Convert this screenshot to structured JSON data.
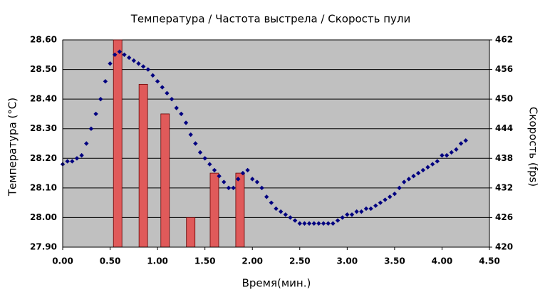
{
  "chart_data": {
    "type": "combo",
    "title": "Температура / Частота выстрела / Скорость пули",
    "xlabel": "Время(мин.)",
    "ylabel": "Температура (°C)",
    "y2label": "Скорость (fps)",
    "xlim": [
      0,
      4.5
    ],
    "xticks": [
      {
        "value": 0,
        "label": "0.00"
      },
      {
        "value": 0.5,
        "label": "0.50"
      },
      {
        "value": 1,
        "label": "1.00"
      },
      {
        "value": 1.5,
        "label": "1.50"
      },
      {
        "value": 2,
        "label": "2.00"
      },
      {
        "value": 2.5,
        "label": "2.50"
      },
      {
        "value": 3,
        "label": "3.00"
      },
      {
        "value": 3.5,
        "label": "3.50"
      },
      {
        "value": 4,
        "label": "4.00"
      },
      {
        "value": 4.5,
        "label": "4.50"
      }
    ],
    "ylim": [
      27.9,
      28.6
    ],
    "yticks": [
      {
        "value": 27.9,
        "label": "27.90"
      },
      {
        "value": 28,
        "label": "28.00"
      },
      {
        "value": 28.1,
        "label": "28.10"
      },
      {
        "value": 28.2,
        "label": "28.20"
      },
      {
        "value": 28.3,
        "label": "28.30"
      },
      {
        "value": 28.4,
        "label": "28.40"
      },
      {
        "value": 28.5,
        "label": "28.50"
      },
      {
        "value": 28.6,
        "label": "28.60"
      }
    ],
    "y2lim": [
      420,
      462
    ],
    "y2ticks": [
      420,
      426,
      432,
      438,
      444,
      450,
      456,
      462
    ],
    "grid": true,
    "series": [
      {
        "type": "bar",
        "axis": "y2",
        "color": "#e05a5a",
        "x": [
          0.58,
          0.85,
          1.08,
          1.35,
          1.6,
          1.87
        ],
        "values": [
          462,
          453,
          447,
          426,
          435,
          435
        ]
      },
      {
        "type": "scatter",
        "color": "#000080",
        "x": [
          0,
          0.05,
          0.1,
          0.15,
          0.2,
          0.25,
          0.3,
          0.35,
          0.4,
          0.45,
          0.5,
          0.55,
          0.6,
          0.65,
          0.7,
          0.75,
          0.8,
          0.85,
          0.9,
          0.95,
          1,
          1.05,
          1.1,
          1.15,
          1.2,
          1.25,
          1.3,
          1.35,
          1.4,
          1.45,
          1.5,
          1.55,
          1.6,
          1.65,
          1.7,
          1.75,
          1.8,
          1.85,
          1.9,
          1.95,
          2,
          2.05,
          2.1,
          2.15,
          2.2,
          2.25,
          2.3,
          2.35,
          2.4,
          2.45,
          2.5,
          2.55,
          2.6,
          2.65,
          2.7,
          2.75,
          2.8,
          2.85,
          2.9,
          2.95,
          3,
          3.05,
          3.1,
          3.15,
          3.2,
          3.25,
          3.3,
          3.35,
          3.4,
          3.45,
          3.5,
          3.55,
          3.6,
          3.65,
          3.7,
          3.75,
          3.8,
          3.85,
          3.9,
          3.95,
          4,
          4.05,
          4.1,
          4.15,
          4.2,
          4.25
        ],
        "values": [
          28.18,
          28.19,
          28.19,
          28.2,
          28.21,
          28.25,
          28.3,
          28.35,
          28.4,
          28.46,
          28.52,
          28.55,
          28.56,
          28.55,
          28.54,
          28.53,
          28.52,
          28.51,
          28.5,
          28.48,
          28.46,
          28.44,
          28.42,
          28.4,
          28.37,
          28.35,
          28.32,
          28.28,
          28.25,
          28.22,
          28.2,
          28.18,
          28.16,
          28.14,
          28.12,
          28.1,
          28.1,
          28.13,
          28.15,
          28.16,
          28.13,
          28.12,
          28.1,
          28.07,
          28.05,
          28.03,
          28.02,
          28.01,
          28,
          27.99,
          27.98,
          27.98,
          27.98,
          27.98,
          27.98,
          27.98,
          27.98,
          27.98,
          27.99,
          28,
          28.01,
          28.01,
          28.02,
          28.02,
          28.03,
          28.03,
          28.04,
          28.05,
          28.06,
          28.07,
          28.08,
          28.1,
          28.12,
          28.13,
          28.14,
          28.15,
          28.16,
          28.17,
          28.18,
          28.19,
          28.21,
          28.21,
          28.22,
          28.23,
          28.25,
          28.26
        ]
      }
    ]
  }
}
